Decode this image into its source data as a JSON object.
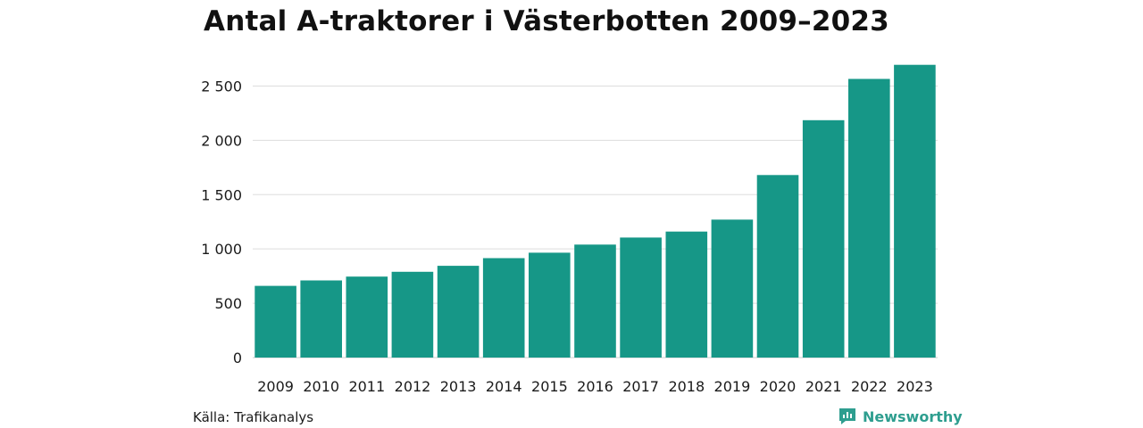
{
  "title": "Antal A-traktorer i Västerbotten 2009–2023",
  "source": "Källa: Trafikanalys",
  "brand": {
    "name": "Newsworthy",
    "icon": "newsworthy-logo-icon",
    "color": "#2e9e8f"
  },
  "colors": {
    "bar": "#169787",
    "grid": "#dddddd",
    "axis": "#cccccc"
  },
  "chart_data": {
    "type": "bar",
    "title": "Antal A-traktorer i Västerbotten 2009–2023",
    "categories": [
      "2009",
      "2010",
      "2011",
      "2012",
      "2013",
      "2014",
      "2015",
      "2016",
      "2017",
      "2018",
      "2019",
      "2020",
      "2021",
      "2022",
      "2023"
    ],
    "values": [
      660,
      710,
      745,
      790,
      845,
      915,
      965,
      1040,
      1105,
      1160,
      1270,
      1680,
      2185,
      2565,
      2695
    ],
    "yticks": [
      0,
      500,
      1000,
      1500,
      2000,
      2500
    ],
    "ytick_labels": [
      "0",
      "500",
      "1 000",
      "1 500",
      "2 000",
      "2 500"
    ],
    "ylim": [
      0,
      2750
    ],
    "xlabel": "",
    "ylabel": "",
    "grid": true,
    "legend": "none"
  }
}
